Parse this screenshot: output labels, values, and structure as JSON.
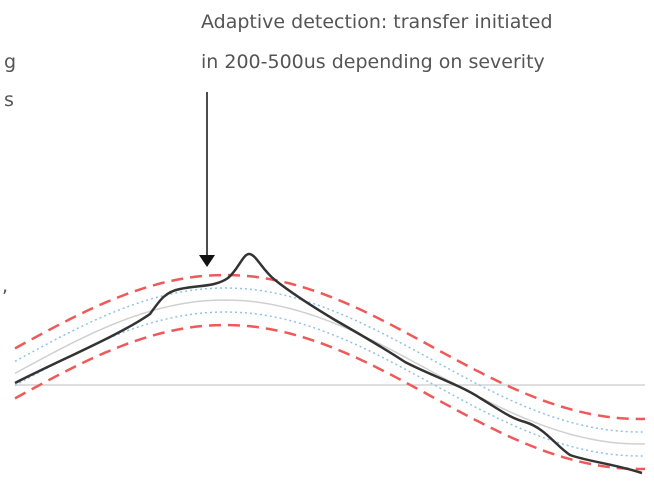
{
  "annotation": {
    "lines": [
      "Adaptive detection: transfer initiated",
      "in 200-500us depending on severity"
    ]
  },
  "left_fragments": [
    "g",
    "s",
    ","
  ]
}
